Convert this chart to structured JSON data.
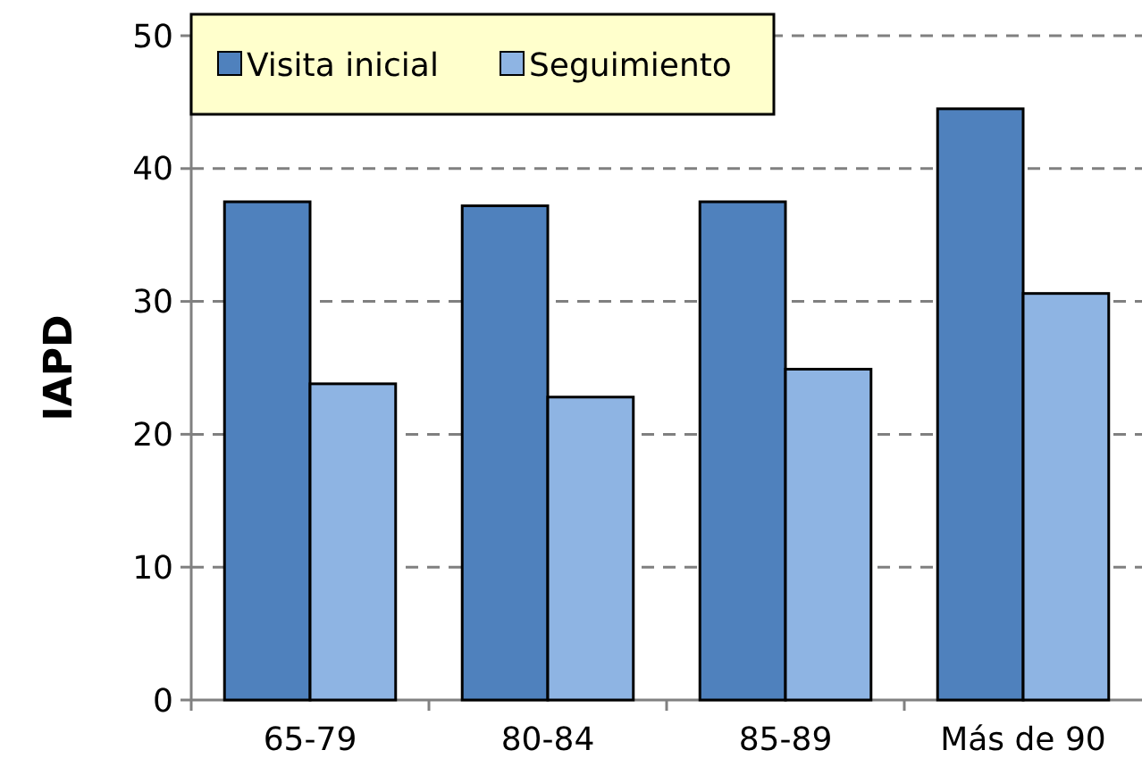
{
  "chart_data": {
    "type": "bar",
    "ylabel": "IAPD",
    "categories": [
      "65-79",
      "80-84",
      "85-89",
      "Más de 90"
    ],
    "series": [
      {
        "name": "Visita inicial",
        "color": "#4f81bd",
        "values": [
          37.5,
          37.2,
          37.5,
          44.5
        ]
      },
      {
        "name": "Seguimiento",
        "color": "#8eb4e3",
        "values": [
          23.8,
          22.8,
          24.9,
          30.6
        ]
      }
    ],
    "ylim": [
      0,
      50
    ],
    "yticks": [
      0,
      10,
      20,
      30,
      40,
      50
    ],
    "grid": "y",
    "legend": "top left"
  }
}
